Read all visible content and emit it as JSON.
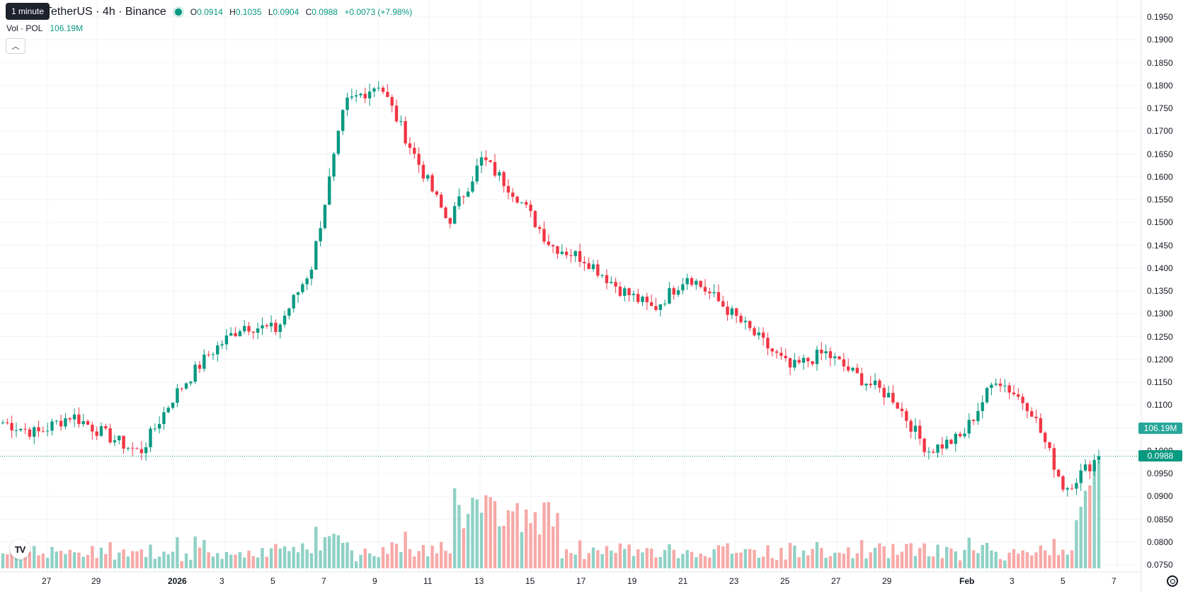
{
  "tooltip": "1 minute",
  "legend": {
    "symbol": "TetherUS · 4h · Binance",
    "open_label": "O",
    "open": "0.0914",
    "high_label": "H",
    "high": "0.1035",
    "low_label": "L",
    "low": "0.0904",
    "close_label": "C",
    "close": "0.0988",
    "change": "+0.0073 (+7.98%)"
  },
  "volume_legend": {
    "label": "Vol · POL",
    "value": "106.19M"
  },
  "price_axis": {
    "ticks": [
      "0.1950",
      "0.1900",
      "0.1850",
      "0.1800",
      "0.1750",
      "0.1700",
      "0.1650",
      "0.1600",
      "0.1550",
      "0.1500",
      "0.1450",
      "0.1400",
      "0.1350",
      "0.1300",
      "0.1250",
      "0.1200",
      "0.1150",
      "0.1100",
      "0.1050",
      "0.1000",
      "0.0950",
      "0.0900",
      "0.0850",
      "0.0800",
      "0.0750"
    ],
    "volume_tag": "106.19M",
    "price_tag": "0.0988"
  },
  "time_axis": {
    "ticks": [
      "27",
      "29",
      "2026",
      "3",
      "5",
      "7",
      "9",
      "11",
      "13",
      "15",
      "17",
      "19",
      "21",
      "23",
      "25",
      "27",
      "29",
      "Feb",
      "3",
      "5",
      "7"
    ]
  },
  "colors": {
    "up": "#089981",
    "down": "#f23645",
    "up_volume": "#8fd1c6",
    "down_volume": "#f7a9a7",
    "grid": "#f0f3fa"
  },
  "chart_data": {
    "type": "candlestick",
    "interval": "4h",
    "y_range": [
      0.075,
      0.195
    ],
    "x_start": "Dec 25",
    "last_price": 0.0988,
    "last_volume_millions": 106.19,
    "close_path": [
      {
        "date": "Dec 25",
        "close": 0.1062
      },
      {
        "date": "Dec 27",
        "close": 0.1038
      },
      {
        "date": "Dec 29",
        "close": 0.1078
      },
      {
        "date": "Dec 30",
        "close": 0.1035
      },
      {
        "date": "Jan 1",
        "close": 0.0995
      },
      {
        "date": "Jan 3",
        "close": 0.112
      },
      {
        "date": "Jan 5",
        "close": 0.121
      },
      {
        "date": "Jan 7",
        "close": 0.1275
      },
      {
        "date": "Jan 8",
        "close": 0.1265
      },
      {
        "date": "Jan 9",
        "close": 0.14
      },
      {
        "date": "Jan 10",
        "close": 0.176
      },
      {
        "date": "Jan 10",
        "close": 0.1805
      },
      {
        "date": "Jan 11",
        "close": 0.165
      },
      {
        "date": "Jan 13",
        "close": 0.15
      },
      {
        "date": "Jan 14",
        "close": 0.164
      },
      {
        "date": "Jan 15",
        "close": 0.156
      },
      {
        "date": "Jan 17",
        "close": 0.145
      },
      {
        "date": "Jan 18",
        "close": 0.142
      },
      {
        "date": "Jan 19",
        "close": 0.1355
      },
      {
        "date": "Jan 21",
        "close": 0.131
      },
      {
        "date": "Jan 21",
        "close": 0.1385
      },
      {
        "date": "Jan 23",
        "close": 0.132
      },
      {
        "date": "Jan 25",
        "close": 0.125
      },
      {
        "date": "Jan 26",
        "close": 0.118
      },
      {
        "date": "Jan 27",
        "close": 0.1215
      },
      {
        "date": "Jan 29",
        "close": 0.116
      },
      {
        "date": "Jan 30",
        "close": 0.1115
      },
      {
        "date": "Feb 1",
        "close": 0.1
      },
      {
        "date": "Feb 2",
        "close": 0.103
      },
      {
        "date": "Feb 3",
        "close": 0.116
      },
      {
        "date": "Feb 4",
        "close": 0.1095
      },
      {
        "date": "Feb 5",
        "close": 0.0915
      },
      {
        "date": "Feb 6",
        "close": 0.0988
      }
    ]
  }
}
